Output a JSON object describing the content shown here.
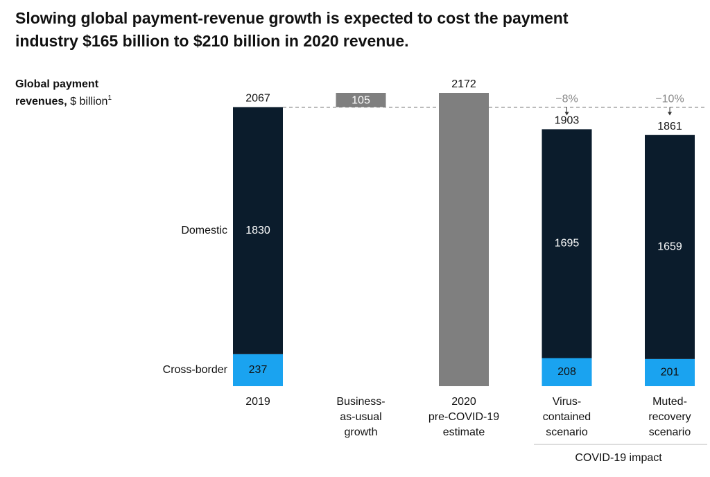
{
  "chart_data": {
    "type": "waterfall",
    "title": [
      "Slowing global payment-revenue growth is expected to cost the payment",
      "industry $165 billion to $210 billion in 2020 revenue."
    ],
    "y_label": {
      "bold": [
        "Global payment",
        "revenues,"
      ],
      "unit": "$ billion",
      "footnote": "1"
    },
    "categories": [
      [
        "2019"
      ],
      [
        "Business-",
        "as-usual",
        "growth"
      ],
      [
        "2020",
        "pre-COVID-19",
        "estimate"
      ],
      [
        "Virus-",
        "contained",
        "scenario"
      ],
      [
        "Muted-",
        "recovery",
        "scenario"
      ]
    ],
    "series": [
      {
        "name": "Cross-border",
        "color": "#1aa3f0",
        "values": [
          237,
          null,
          null,
          208,
          201
        ]
      },
      {
        "name": "Domestic",
        "color": "#0b1c2c",
        "values": [
          1830,
          null,
          null,
          1695,
          1659
        ]
      }
    ],
    "totals": [
      2067,
      null,
      2172,
      1903,
      1861
    ],
    "total_color": "#7f7f7f",
    "growth": {
      "values": [
        null,
        105,
        null,
        null,
        null
      ],
      "color": "#7f7f7f"
    },
    "changes": {
      "values": [
        null,
        null,
        null,
        -8,
        -10
      ],
      "value_labels": [
        null,
        null,
        null,
        "−8%",
        "−10%"
      ]
    },
    "group_label": "COVID-19 impact",
    "ylim": [
      0,
      2172
    ]
  }
}
